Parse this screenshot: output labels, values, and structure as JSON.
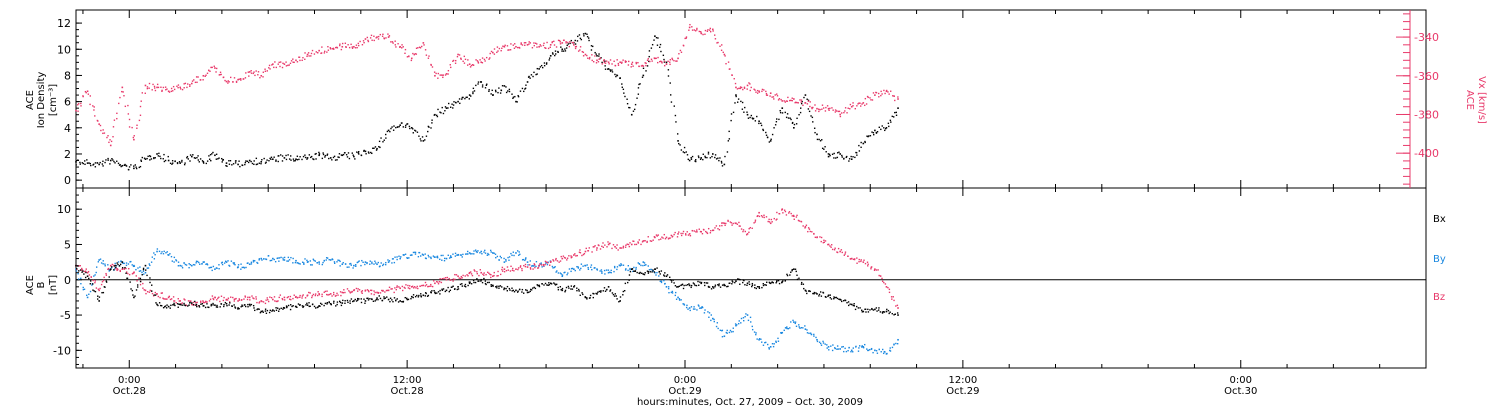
{
  "chart_data": [
    {
      "type": "scatter",
      "panel": "top",
      "ylabel_left": [
        "ACE",
        "Ion Density",
        "[cm⁻³]"
      ],
      "ylabel_right": [
        "ACE",
        "Vx [km/s]"
      ],
      "ylim_left": [
        -0.6,
        13
      ],
      "ylim_right": [
        -418,
        -326
      ],
      "yticks_left": [
        0,
        2,
        4,
        6,
        8,
        10,
        12
      ],
      "yticks_right": [
        -340,
        -360,
        -380,
        -400
      ],
      "series": [
        {
          "axis": "left",
          "color": "#000000",
          "x": [
            0,
            1,
            2,
            3,
            4,
            5,
            6,
            7,
            8,
            9,
            10,
            11,
            12,
            13,
            14,
            15,
            16,
            17,
            18,
            19,
            20,
            21,
            22,
            23,
            24,
            25,
            26,
            27,
            28,
            29,
            30,
            31,
            32,
            33,
            34,
            35,
            36,
            37,
            38,
            39,
            40,
            41,
            42,
            43,
            44,
            45,
            46,
            47,
            48,
            49,
            50,
            51,
            52,
            53,
            54,
            55,
            56,
            57,
            58,
            59,
            60,
            61,
            62,
            63,
            64,
            65,
            66,
            67,
            68,
            69,
            70,
            71
          ],
          "values": [
            1.4,
            1.3,
            1.2,
            1.5,
            1.1,
            0.9,
            1.6,
            2.0,
            1.5,
            1.3,
            1.8,
            1.4,
            1.9,
            1.3,
            1.2,
            1.5,
            1.4,
            1.6,
            1.7,
            1.6,
            1.7,
            1.9,
            1.7,
            1.9,
            1.8,
            2.2,
            2.4,
            3.8,
            4.2,
            4.0,
            3.0,
            5.0,
            5.5,
            6.0,
            6.5,
            7.5,
            6.5,
            7.2,
            6.0,
            7.5,
            8.5,
            9.5,
            10.0,
            10.5,
            11.2,
            9.5,
            8.5,
            7.8,
            5.0,
            8.0,
            11.0,
            9.0,
            3.0,
            1.5,
            1.7,
            2.0,
            1.2,
            6.5,
            5.0,
            4.5,
            3.0,
            5.5,
            4.0,
            6.5,
            3.5,
            1.8,
            2.0,
            1.6,
            2.8,
            3.8,
            4.0,
            5.5
          ]
        },
        {
          "axis": "right",
          "color": "#e8396a",
          "x": [
            0,
            1,
            2,
            3,
            4,
            5,
            6,
            7,
            8,
            9,
            10,
            11,
            12,
            13,
            14,
            15,
            16,
            17,
            18,
            19,
            20,
            21,
            22,
            23,
            24,
            25,
            26,
            27,
            28,
            29,
            30,
            31,
            32,
            33,
            34,
            35,
            36,
            37,
            38,
            39,
            40,
            41,
            42,
            43,
            44,
            45,
            46,
            47,
            48,
            49,
            50,
            51,
            52,
            53,
            54,
            55,
            56,
            57,
            58,
            59,
            60,
            61,
            62,
            63,
            64,
            65,
            66,
            67,
            68,
            69,
            70,
            71
          ],
          "values": [
            -378,
            -368,
            -385,
            -396,
            -366,
            -393,
            -365,
            -366,
            -368,
            -366,
            -364,
            -360,
            -356,
            -363,
            -362,
            -358,
            -360,
            -354,
            -354,
            -352,
            -349,
            -347,
            -346,
            -345,
            -345,
            -341,
            -340,
            -340,
            -345,
            -351,
            -343,
            -360,
            -359,
            -349,
            -354,
            -353,
            -348,
            -345,
            -345,
            -344,
            -345,
            -344,
            -343,
            -344,
            -349,
            -352,
            -353,
            -353,
            -354,
            -355,
            -351,
            -354,
            -351,
            -335,
            -338,
            -336,
            -349,
            -366,
            -365,
            -368,
            -369,
            -373,
            -372,
            -374,
            -377,
            -377,
            -380,
            -376,
            -374,
            -370,
            -368,
            -372
          ]
        }
      ]
    },
    {
      "type": "scatter",
      "panel": "bottom",
      "ylabel_left": [
        "ACE",
        "B",
        "[nT]"
      ],
      "ylim": [
        -12.5,
        13
      ],
      "yticks": [
        10,
        5,
        0,
        -5,
        -10
      ],
      "series": [
        {
          "name": "Bx",
          "color": "#000000",
          "x": [
            0,
            1,
            2,
            3,
            4,
            5,
            6,
            7,
            8,
            9,
            10,
            11,
            12,
            13,
            14,
            15,
            16,
            17,
            18,
            19,
            20,
            21,
            22,
            23,
            24,
            25,
            26,
            27,
            28,
            29,
            30,
            31,
            32,
            33,
            34,
            35,
            36,
            37,
            38,
            39,
            40,
            41,
            42,
            43,
            44,
            45,
            46,
            47,
            48,
            49,
            50,
            51,
            52,
            53,
            54,
            55,
            56,
            57,
            58,
            59,
            60,
            61,
            62,
            63,
            64,
            65,
            66,
            67,
            68,
            69,
            70,
            71
          ],
          "values": [
            2.0,
            0.5,
            -3.0,
            1.5,
            2.5,
            -2.5,
            2.0,
            -3.5,
            -3.8,
            -3.5,
            -3.3,
            -3.7,
            -3.6,
            -3.4,
            -4.0,
            -3.5,
            -4.5,
            -4.3,
            -4.0,
            -3.8,
            -3.6,
            -3.7,
            -3.4,
            -3.3,
            -3.0,
            -3.0,
            -2.6,
            -2.8,
            -3.0,
            -2.4,
            -2.2,
            -1.8,
            -1.5,
            -1.0,
            -0.5,
            0.0,
            -0.8,
            -1.2,
            -1.5,
            -1.8,
            -0.8,
            -0.5,
            -1.5,
            -1.0,
            -2.5,
            -2.0,
            -1.0,
            -3.0,
            1.5,
            0.8,
            1.5,
            0.5,
            -1.0,
            -0.8,
            -0.5,
            -1.0,
            -0.8,
            -0.2,
            -0.5,
            -1.0,
            -0.5,
            -0.3,
            1.5,
            -1.5,
            -2.0,
            -2.2,
            -2.8,
            -3.5,
            -4.5,
            -4.2,
            -4.5,
            -5.0
          ]
        },
        {
          "name": "By",
          "color": "#1a88e0",
          "x": [
            0,
            1,
            2,
            3,
            4,
            5,
            6,
            7,
            8,
            9,
            10,
            11,
            12,
            13,
            14,
            15,
            16,
            17,
            18,
            19,
            20,
            21,
            22,
            23,
            24,
            25,
            26,
            27,
            28,
            29,
            30,
            31,
            32,
            33,
            34,
            35,
            36,
            37,
            38,
            39,
            40,
            41,
            42,
            43,
            44,
            45,
            46,
            47,
            48,
            49,
            50,
            51,
            52,
            53,
            54,
            55,
            56,
            57,
            58,
            59,
            60,
            61,
            62,
            63,
            64,
            65,
            66,
            67,
            68,
            69,
            70,
            71
          ],
          "values": [
            1.5,
            -2.5,
            2.8,
            1.5,
            2.5,
            2.0,
            1.0,
            4.0,
            3.5,
            2.0,
            2.0,
            2.5,
            1.5,
            2.5,
            1.8,
            2.2,
            3.0,
            3.0,
            2.8,
            2.7,
            2.5,
            2.5,
            2.8,
            2.2,
            2.0,
            2.5,
            2.2,
            2.5,
            3.0,
            3.5,
            3.5,
            3.2,
            3.0,
            3.5,
            3.8,
            4.0,
            3.8,
            2.5,
            3.8,
            2.5,
            2.0,
            2.5,
            0.5,
            1.5,
            2.0,
            1.5,
            1.0,
            2.0,
            1.5,
            2.5,
            1.0,
            -1.0,
            -2.5,
            -4.0,
            -4.0,
            -5.5,
            -8.0,
            -6.5,
            -5.0,
            -8.5,
            -9.5,
            -7.5,
            -6.0,
            -7.0,
            -8.5,
            -9.5,
            -9.8,
            -10.0,
            -9.5,
            -10.0,
            -10.5,
            -8.5
          ]
        },
        {
          "name": "Bz",
          "color": "#e8396a",
          "x": [
            0,
            1,
            2,
            3,
            4,
            5,
            6,
            7,
            8,
            9,
            10,
            11,
            12,
            13,
            14,
            15,
            16,
            17,
            18,
            19,
            20,
            21,
            22,
            23,
            24,
            25,
            26,
            27,
            28,
            29,
            30,
            31,
            32,
            33,
            34,
            35,
            36,
            37,
            38,
            39,
            40,
            41,
            42,
            43,
            44,
            45,
            46,
            47,
            48,
            49,
            50,
            51,
            52,
            53,
            54,
            55,
            56,
            57,
            58,
            59,
            60,
            61,
            62,
            63,
            64,
            65,
            66,
            67,
            68,
            69,
            70,
            71
          ],
          "values": [
            2.0,
            1.0,
            -1.5,
            2.0,
            1.5,
            1.0,
            -1.5,
            -2.0,
            -2.5,
            -3.0,
            -3.5,
            -3.2,
            -2.5,
            -2.8,
            -3.0,
            -2.5,
            -3.0,
            -2.8,
            -2.5,
            -2.4,
            -2.2,
            -2.0,
            -2.0,
            -1.8,
            -1.5,
            -1.5,
            -1.8,
            -1.5,
            -1.2,
            -1.0,
            -0.8,
            -0.5,
            0.0,
            0.5,
            1.0,
            1.0,
            0.5,
            1.5,
            1.5,
            1.8,
            2.0,
            2.5,
            3.0,
            3.5,
            4.0,
            4.5,
            5.0,
            4.5,
            5.0,
            5.5,
            6.0,
            6.0,
            6.5,
            6.5,
            6.8,
            7.0,
            8.0,
            8.0,
            6.5,
            9.5,
            8.0,
            10.0,
            9.0,
            7.5,
            6.0,
            5.0,
            4.0,
            3.0,
            2.5,
            1.5,
            -1.0,
            -4.0
          ]
        }
      ],
      "legend": [
        "Bx",
        "By",
        "Bz"
      ]
    }
  ],
  "x_axis": {
    "ticks": [
      {
        "hour": 0,
        "time": "0:00",
        "date": "Oct.28"
      },
      {
        "hour": 12,
        "time": "12:00",
        "date": "Oct.28"
      },
      {
        "hour": 24,
        "time": "0:00",
        "date": "Oct.29"
      },
      {
        "hour": 36,
        "time": "12:00",
        "date": "Oct.29"
      },
      {
        "hour": 48,
        "time": "0:00",
        "date": "Oct.30"
      }
    ],
    "xlim_hours": [
      -2.3,
      56
    ],
    "data_start_hour": -2.3,
    "data_step_hours": 0.5,
    "label": "hours:minutes, Oct. 27, 2009 – Oct. 30, 2009"
  },
  "colors": {
    "black": "#000000",
    "pink": "#e8396a",
    "blue": "#1a88e0"
  }
}
